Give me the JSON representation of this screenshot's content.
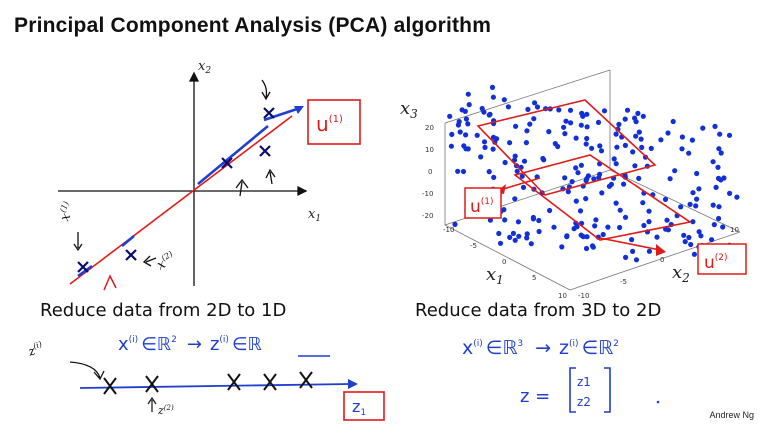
{
  "slide": {
    "title": "Principal Component Analysis (PCA) algorithm",
    "author": "Andrew Ng"
  },
  "left_panel": {
    "axis_x_label": "x",
    "axis_x_sub": "1",
    "axis_y_label": "x",
    "axis_y_sub": "2",
    "caption": "Reduce data from 2D to 1D",
    "box_u": "u",
    "box_u_sup": "(1)",
    "label_x1": "x",
    "label_x1_sup": "(1)",
    "label_x2": "x",
    "label_x2_sup": "(2)",
    "mapping_from": "x",
    "mapping_from_sup": "(i)",
    "mapping_in_1": "∈ℝ",
    "mapping_in_1_sup": "2",
    "mapping_arrow": "→",
    "mapping_to": "z",
    "mapping_to_sup": "(i)",
    "mapping_in_2": "∈ℝ",
    "z_label": "z",
    "z_label_sup": "(i)",
    "z2_label": "z",
    "z2_label_sup": "(2)",
    "box_z": "z",
    "box_z_sub": "1"
  },
  "right_panel": {
    "axis_x3_label": "x",
    "axis_x3_sub": "3",
    "axis_x1_label": "x",
    "axis_x1_sub": "1",
    "axis_x2_label": "x",
    "axis_x2_sub": "2",
    "caption": "Reduce data from 3D to 2D",
    "z_ticks": [
      "20",
      "10",
      "0",
      "-10",
      "-20"
    ],
    "x1_ticks": [
      "-10",
      "-5",
      "0",
      "5",
      "10"
    ],
    "x2_ticks": [
      "-10",
      "-5",
      "0",
      "5",
      "10"
    ],
    "box_u1": "u",
    "box_u1_sup": "(1)",
    "box_u2": "u",
    "box_u2_sup": "(2)",
    "mapping_from": "x",
    "mapping_from_sup": "(i)",
    "mapping_in_1": "∈ℝ",
    "mapping_in_1_sup": "3",
    "mapping_arrow": "→",
    "mapping_to": "z",
    "mapping_to_sup": "(i)",
    "mapping_in_2": "∈ℝ",
    "mapping_in_2_sup": "2",
    "z_eq": "z =",
    "z_vec_1": "z1",
    "z_vec_2": "z2"
  },
  "colors": {
    "data_point": "#1a1aa8",
    "marker": "#0b0b6e",
    "projection_line": "#e11a1a",
    "handwriting": "#1f3fd0",
    "scatter": "#1230d8"
  }
}
